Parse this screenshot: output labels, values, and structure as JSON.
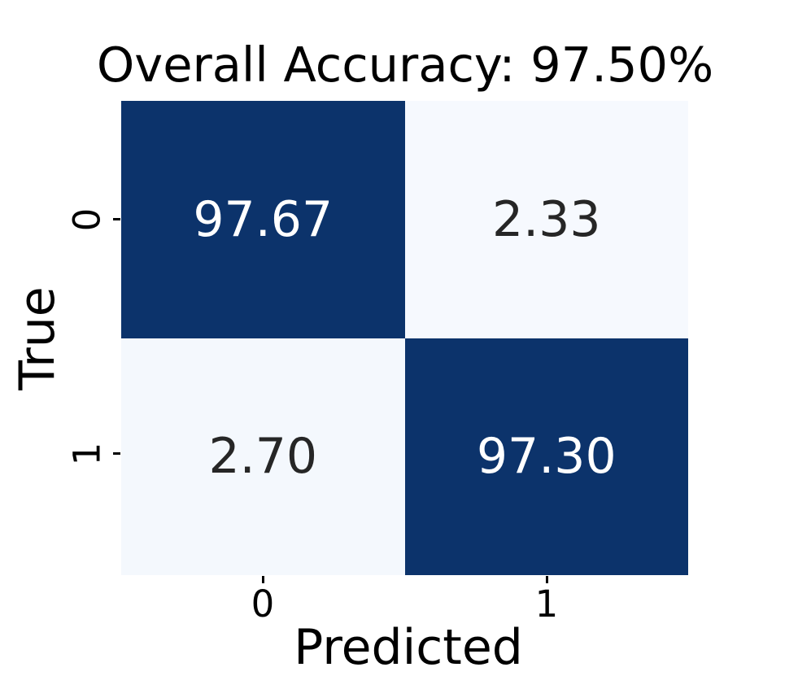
{
  "figure": {
    "background": "#ffffff",
    "font_color": "#000000"
  },
  "chart_data": {
    "type": "heatmap",
    "title": "Overall Accuracy: 97.50%",
    "overall_accuracy": "97.50%",
    "xlabel": "Predicted",
    "ylabel": "True",
    "x_ticklabels": [
      "0",
      "1"
    ],
    "y_ticklabels": [
      "0",
      "1"
    ],
    "values": [
      [
        97.67,
        2.33
      ],
      [
        2.7,
        97.3
      ]
    ],
    "value_format": "2 decimals, percent of row",
    "colormap": "Blues",
    "colors": {
      "dark_cell": "#0c336b",
      "light_cell": "#f6f9fe",
      "dark_text": "#262626",
      "light_text": "#ffffff"
    },
    "legend": "none",
    "grid": "off",
    "cells": [
      {
        "row": 0,
        "col": 0,
        "label": "97.67",
        "bg": "#0c336b",
        "fg": "#ffffff"
      },
      {
        "row": 0,
        "col": 1,
        "label": "2.33",
        "bg": "#f6f9fe",
        "fg": "#262626"
      },
      {
        "row": 1,
        "col": 0,
        "label": "2.70",
        "bg": "#f4f8fd",
        "fg": "#262626"
      },
      {
        "row": 1,
        "col": 1,
        "label": "97.30",
        "bg": "#0c336b",
        "fg": "#ffffff"
      }
    ]
  }
}
